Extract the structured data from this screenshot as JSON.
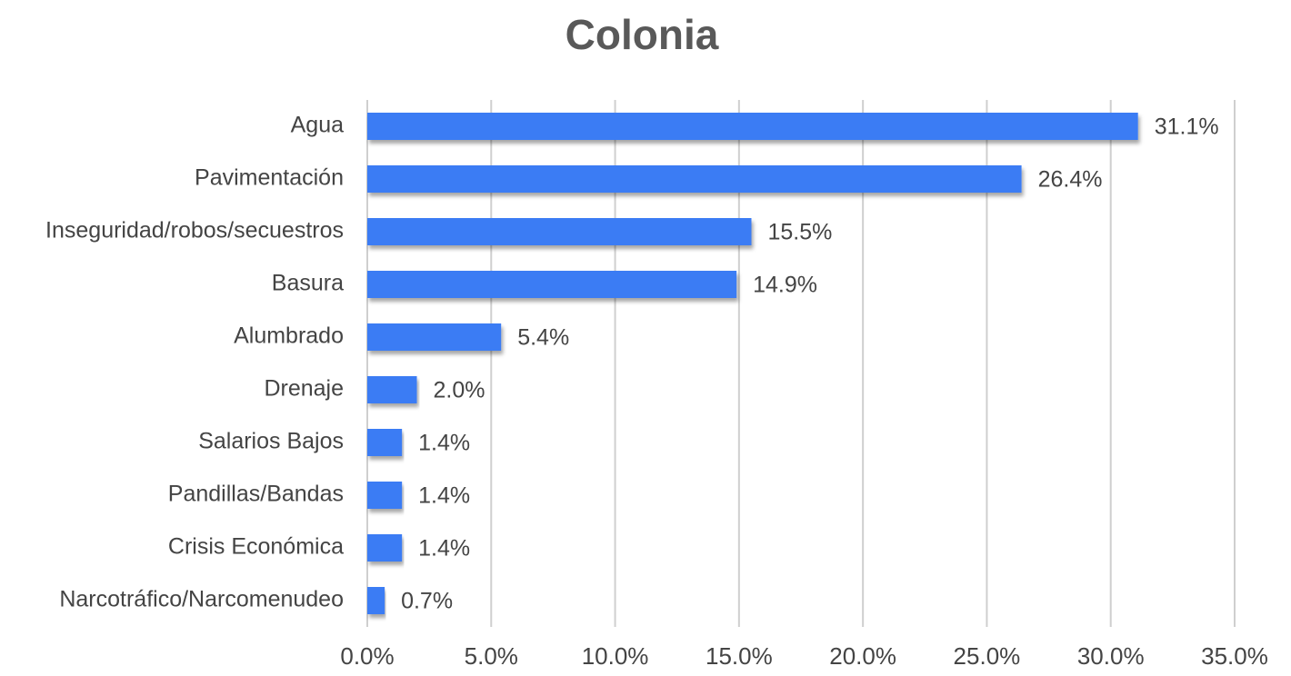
{
  "chart_data": {
    "type": "hbar",
    "title": "Colonia",
    "categories": [
      "Agua",
      "Pavimentación",
      "Inseguridad/robos/secuestros",
      "Basura",
      "Alumbrado",
      "Drenaje",
      "Salarios Bajos",
      "Pandillas/Bandas",
      "Crisis Económica",
      "Narcotráfico/Narcomenudeo"
    ],
    "values": [
      31.1,
      26.4,
      15.5,
      14.9,
      5.4,
      2.0,
      1.4,
      1.4,
      1.4,
      0.7
    ],
    "value_labels": [
      "31.1%",
      "26.4%",
      "15.5%",
      "14.9%",
      "5.4%",
      "2.0%",
      "1.4%",
      "1.4%",
      "1.4%",
      "0.7%"
    ],
    "color": "#3b7cf4",
    "xlim": [
      0,
      35
    ],
    "xticks": [
      {
        "value": 0,
        "label": "0.0%"
      },
      {
        "value": 5,
        "label": "5.0%"
      },
      {
        "value": 10,
        "label": "10.0%"
      },
      {
        "value": 15,
        "label": "15.0%"
      },
      {
        "value": 20,
        "label": "20.0%"
      },
      {
        "value": 25,
        "label": "25.0%"
      },
      {
        "value": 30,
        "label": "30.0%"
      },
      {
        "value": 35,
        "label": "35.0%"
      }
    ],
    "grid": true
  }
}
